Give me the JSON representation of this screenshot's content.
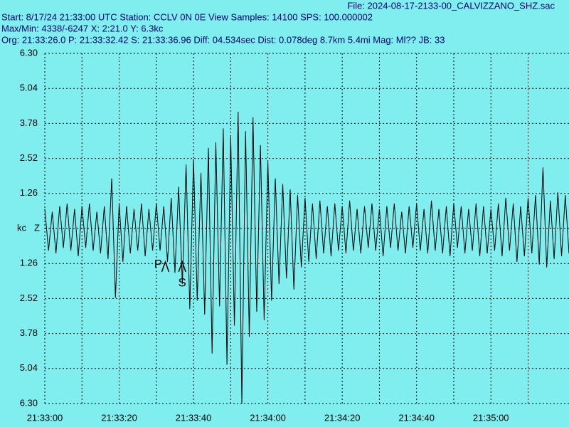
{
  "chart_data": {
    "type": "line",
    "header": [
      "File: 2024-08-17-2133-00_CALVIZZANO_SHZ.sac",
      "Start: 8/17/24 21:33:00 UTC Station: CCLV 0N 0E View Samples: 14100  SPS: 100.000002",
      "Max/Min: 4338/-6247 X: 2:21.0 Y: 6.3kc",
      "Org: 21:33:26.0 P: 21:33:32.42 S: 21:33:36.96 Diff: 04.534sec Dist: 0.078deg 8.7km 5.4mi  Mag: Ml?? JB: 33"
    ],
    "channel": "Z",
    "color": "#000000",
    "grid": true,
    "xlim": [
      0,
      141
    ],
    "ylim": [
      -6.3,
      6.3
    ],
    "xticks": [
      {
        "value": 0,
        "label": "21:33:00"
      },
      {
        "value": 20,
        "label": "21:33:20"
      },
      {
        "value": 40,
        "label": "21:33:40"
      },
      {
        "value": 60,
        "label": "21:34:00"
      },
      {
        "value": 80,
        "label": "21:34:20"
      },
      {
        "value": 100,
        "label": "21:34:40"
      },
      {
        "value": 120,
        "label": "21:35:00"
      }
    ],
    "xminor": [
      10,
      30,
      50,
      70,
      90,
      110,
      130
    ],
    "yticks": [
      {
        "value": 6.3,
        "label": "6.30"
      },
      {
        "value": 5.04,
        "label": "5.04"
      },
      {
        "value": 3.78,
        "label": "3.78"
      },
      {
        "value": 2.52,
        "label": "2.52"
      },
      {
        "value": 1.26,
        "label": "1.26"
      },
      {
        "value": 0,
        "label": "kc"
      },
      {
        "value": -1.26,
        "label": "1.26"
      },
      {
        "value": -2.52,
        "label": "2.52"
      },
      {
        "value": -3.78,
        "label": "3.78"
      },
      {
        "value": -5.04,
        "label": "5.04"
      },
      {
        "value": -6.3,
        "label": "6.30"
      }
    ],
    "picks": [
      {
        "label": "P",
        "x": 32.42
      },
      {
        "label": "S",
        "x": 36.96
      }
    ],
    "x": [
      0,
      1,
      2,
      3,
      4,
      5,
      6,
      7,
      8,
      9,
      10,
      11,
      12,
      13,
      14,
      15,
      16,
      17,
      18,
      19,
      20,
      21,
      22,
      23,
      24,
      25,
      26,
      27,
      28,
      29,
      30,
      31,
      32,
      33,
      34,
      35,
      36,
      37,
      38,
      39,
      40,
      41,
      42,
      43,
      44,
      45,
      46,
      47,
      48,
      49,
      50,
      51,
      52,
      53,
      54,
      55,
      56,
      57,
      58,
      59,
      60,
      61,
      62,
      63,
      64,
      65,
      66,
      67,
      68,
      69,
      70,
      71,
      72,
      73,
      74,
      75,
      76,
      77,
      78,
      79,
      80,
      81,
      82,
      83,
      84,
      85,
      86,
      87,
      88,
      89,
      90,
      91,
      92,
      93,
      94,
      95,
      96,
      97,
      98,
      99,
      100,
      101,
      102,
      103,
      104,
      105,
      106,
      107,
      108,
      109,
      110,
      111,
      112,
      113,
      114,
      115,
      116,
      117,
      118,
      119,
      120,
      121,
      122,
      123,
      124,
      125,
      126,
      127,
      128,
      129,
      130,
      131,
      132,
      133,
      134,
      135,
      136,
      137,
      138,
      139,
      140,
      141
    ],
    "values": [
      0.7,
      -0.8,
      0.6,
      -0.9,
      0.8,
      -0.7,
      0.9,
      -0.8,
      0.7,
      -1.0,
      0.8,
      -0.7,
      0.9,
      -0.8,
      0.6,
      -0.9,
      0.8,
      -1.1,
      1.8,
      -2.5,
      0.9,
      -1.2,
      0.8,
      -0.9,
      0.7,
      -0.8,
      0.9,
      -1.0,
      0.7,
      -0.8,
      0.9,
      -0.8,
      0.8,
      -1.2,
      1.1,
      -1.6,
      1.5,
      -2.0,
      2.3,
      -2.9,
      2.5,
      -2.6,
      2.0,
      -3.1,
      2.9,
      -4.5,
      3.1,
      -2.8,
      3.6,
      -4.9,
      3.3,
      -3.5,
      4.2,
      -6.3,
      3.5,
      -3.9,
      4.0,
      -3.0,
      3.0,
      -3.3,
      2.4,
      -2.6,
      1.8,
      -2.0,
      1.6,
      -1.8,
      1.4,
      -2.2,
      1.2,
      -1.4,
      1.1,
      -1.2,
      0.9,
      -1.1,
      1.0,
      -0.9,
      0.8,
      -1.0,
      0.9,
      -0.8,
      0.8,
      -0.9,
      1.0,
      -0.8,
      0.7,
      -0.9,
      0.8,
      -0.7,
      0.9,
      -0.8,
      0.7,
      -1.0,
      0.8,
      -0.7,
      0.9,
      -0.8,
      0.6,
      -0.9,
      0.8,
      -0.7,
      0.9,
      -0.8,
      0.7,
      -0.9,
      1.0,
      -0.8,
      0.7,
      -0.9,
      0.8,
      -1.0,
      0.9,
      -0.7,
      0.8,
      -0.9,
      0.7,
      -0.8,
      0.9,
      -1.0,
      0.8,
      -0.9,
      0.7,
      -0.8,
      0.9,
      -1.0,
      1.1,
      -0.8,
      0.9,
      -1.2,
      0.8,
      -1.0,
      1.1,
      -0.9,
      1.2,
      -1.3,
      2.2,
      -1.4,
      1.0,
      -1.1,
      1.3,
      -1.0,
      1.2,
      -0.9
    ]
  }
}
